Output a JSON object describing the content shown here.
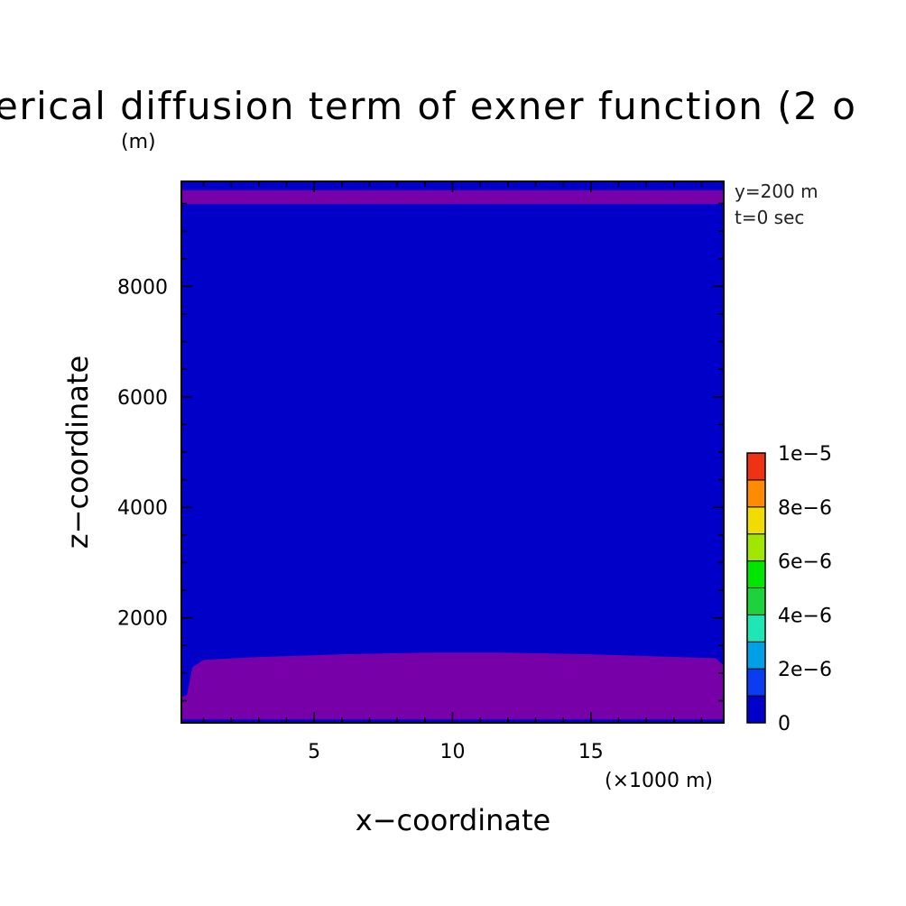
{
  "chart_data": {
    "type": "heatmap",
    "title": "erical diffusion term of exner function (2 o",
    "xlabel": "x−coordinate",
    "ylabel": "z−coordinate",
    "y_unit": "(m)",
    "x_unit": "(×1000 m)",
    "annotations": [
      "y=200 m",
      "t=0 sec"
    ],
    "xlim": [
      0.2,
      19.8
    ],
    "ylim": [
      100,
      9900
    ],
    "x_ticks": [
      {
        "value": 5,
        "label": "5"
      },
      {
        "value": 10,
        "label": "10"
      },
      {
        "value": 15,
        "label": "15"
      }
    ],
    "y_ticks": [
      {
        "value": 2000,
        "label": "2000"
      },
      {
        "value": 4000,
        "label": "4000"
      },
      {
        "value": 6000,
        "label": "6000"
      },
      {
        "value": 8000,
        "label": "8000"
      }
    ],
    "background_color": "#0000c8",
    "colorbar": {
      "levels": [
        0,
        1e-06,
        2e-06,
        3e-06,
        4e-06,
        5e-06,
        6e-06,
        7e-06,
        8e-06,
        9e-06,
        1e-05
      ],
      "colors": [
        "#0000c8",
        "#0a3cf0",
        "#00a0e6",
        "#1ee6b4",
        "#1ed23c",
        "#00e600",
        "#a0e600",
        "#f0dc00",
        "#ff8c00",
        "#f03214"
      ],
      "labels": [
        {
          "value": 0,
          "label": "0"
        },
        {
          "value": 2e-06,
          "label": "2e−6"
        },
        {
          "value": 4e-06,
          "label": "4e−6"
        },
        {
          "value": 6e-06,
          "label": "6e−6"
        },
        {
          "value": 8e-06,
          "label": "8e−6"
        },
        {
          "value": 1e-05,
          "label": "1e−5"
        }
      ]
    },
    "regions": [
      {
        "name": "upper-layer",
        "color": "#7800a8",
        "polygon": [
          [
            0.2,
            9490
          ],
          [
            19.8,
            9490
          ],
          [
            19.8,
            9740
          ],
          [
            0.2,
            9740
          ]
        ]
      },
      {
        "name": "near-surface-layer",
        "color": "#7800a8",
        "polygon": [
          [
            0.2,
            160
          ],
          [
            0.2,
            560
          ],
          [
            0.4,
            600
          ],
          [
            0.6,
            1110
          ],
          [
            1.0,
            1240
          ],
          [
            3.0,
            1290
          ],
          [
            6.0,
            1340
          ],
          [
            9.0,
            1370
          ],
          [
            12.0,
            1370
          ],
          [
            15.0,
            1340
          ],
          [
            17.5,
            1300
          ],
          [
            19.5,
            1270
          ],
          [
            19.8,
            1140
          ],
          [
            19.8,
            160
          ]
        ]
      }
    ]
  }
}
